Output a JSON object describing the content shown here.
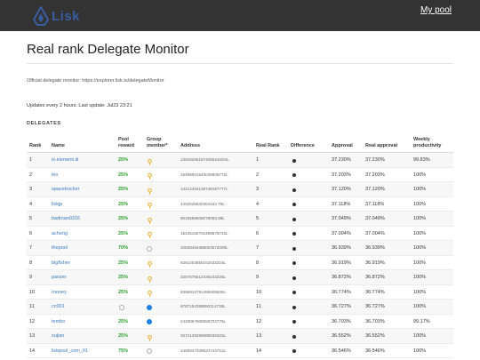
{
  "nav": {
    "logo_text": "Lisk",
    "my_pool_label": "My pool"
  },
  "page": {
    "title": "Real rank Delegate Monitor",
    "official_text": "Official delegate monitor: https://explorer.lisk.io/delegateMonitor",
    "updates_text": "Updates every 2 hours. Last update: Jul23 23:21",
    "section_label": "DELEGATES"
  },
  "colors": {
    "navbar": "#333333",
    "link": "#3a78c0",
    "reward_green": "#2a9d2a",
    "blue_member": "#1e7fe8",
    "pin_gold": "#e8a820"
  },
  "table": {
    "headers": {
      "rank": "Rank",
      "name": "Name",
      "reward_l1": "Pool",
      "reward_l2": "reward",
      "group_l1": "Group",
      "group_l2": "member*",
      "address": "Address",
      "real_rank": "Real Rank",
      "difference": "Difference",
      "approval": "Approval",
      "real_approval": "Real approval",
      "weekly_l1": "Weekly",
      "weekly_l2": "productivity"
    },
    "rows": [
      {
        "rank": "1",
        "name": "ix.element.iii",
        "reward": "25%",
        "reward_style": "green",
        "group": "pin",
        "address": "1394325616740553182OL",
        "real_rank": "1",
        "diff": "dot",
        "approval": "37.230%",
        "real_approval": "37.230%",
        "weekly": "99.83%"
      },
      {
        "rank": "2",
        "name": "leo",
        "reward": "25%",
        "reward_style": "green",
        "group": "pin",
        "address": "15458001843048905772L",
        "real_rank": "2",
        "diff": "dot",
        "approval": "37.203%",
        "real_approval": "37.203%",
        "weekly": "100%"
      },
      {
        "rank": "3",
        "name": "spacetrucker",
        "reward": "25%",
        "reward_style": "green",
        "group": "pin",
        "address": "14212484126746187777L",
        "real_rank": "3",
        "diff": "dot",
        "approval": "37.120%",
        "real_approval": "37.120%",
        "weekly": "100%"
      },
      {
        "rank": "4",
        "name": "liskjp",
        "reward": "25%",
        "reward_style": "green",
        "group": "pin",
        "address": "4402625640304342 70L",
        "real_rank": "4",
        "diff": "dot",
        "approval": "37.118%",
        "real_approval": "37.118%",
        "weekly": "100%"
      },
      {
        "rank": "5",
        "name": "badman0316",
        "reward": "25%",
        "reward_style": "green",
        "group": "pin",
        "address": "8019598606079093 88L",
        "real_rank": "5",
        "diff": "dot",
        "approval": "37.049%",
        "real_approval": "37.049%",
        "weekly": "100%"
      },
      {
        "rank": "6",
        "name": "acheng",
        "reward": "25%",
        "reward_style": "green",
        "group": "pin",
        "address": "15435156702499576722L",
        "real_rank": "6",
        "diff": "dot",
        "approval": "37.004%",
        "real_approval": "37.004%",
        "weekly": "100%"
      },
      {
        "rank": "7",
        "name": "thepool",
        "reward": "70%",
        "reward_style": "green",
        "group": "empty",
        "address": "10839494368003872009L",
        "real_rank": "7",
        "diff": "dot",
        "approval": "36.939%",
        "real_approval": "36.939%",
        "weekly": "100%"
      },
      {
        "rank": "8",
        "name": "bigfisher",
        "reward": "25%",
        "reward_style": "green",
        "group": "pin",
        "address": "6281403850162033315L",
        "real_rank": "8",
        "diff": "dot",
        "approval": "36.919%",
        "real_approval": "36.919%",
        "weekly": "100%"
      },
      {
        "rank": "9",
        "name": "panzer",
        "reward": "25%",
        "reward_style": "green",
        "group": "pin",
        "address": "3207675512436243226L",
        "real_rank": "9",
        "diff": "dot",
        "approval": "36.872%",
        "real_approval": "36.872%",
        "weekly": "100%"
      },
      {
        "rank": "10",
        "name": "rooney",
        "reward": "25%",
        "reward_style": "green",
        "group": "pin",
        "address": "6356913781456505636L",
        "real_rank": "10",
        "diff": "dot",
        "approval": "36.774%",
        "real_approval": "36.774%",
        "weekly": "100%"
      },
      {
        "rank": "11",
        "name": "cc001",
        "reward": "",
        "reward_style": "empty-circle",
        "group": "blue",
        "address": "6787154358850114736L",
        "real_rank": "11",
        "diff": "dot",
        "approval": "36.727%",
        "real_approval": "36.727%",
        "weekly": "100%"
      },
      {
        "rank": "12",
        "name": "tembo",
        "reward": "25%",
        "reward_style": "green",
        "group": "blue",
        "address": "2433857900558702776L",
        "real_rank": "12",
        "diff": "dot",
        "approval": "36.703%",
        "real_approval": "36.703%",
        "weekly": "99.17%"
      },
      {
        "rank": "13",
        "name": "xujian",
        "reward": "25%",
        "reward_style": "green",
        "group": "pin",
        "address": "2074128296889030323L",
        "real_rank": "13",
        "diff": "dot",
        "approval": "36.552%",
        "real_approval": "36.552%",
        "weekly": "100%"
      },
      {
        "rank": "14",
        "name": "liskpool_com_01",
        "reward": "75%",
        "reward_style": "green",
        "group": "empty",
        "address": "1459347409624744712L",
        "real_rank": "14",
        "diff": "dot",
        "approval": "36.546%",
        "real_approval": "36.546%",
        "weekly": "100%"
      }
    ]
  }
}
